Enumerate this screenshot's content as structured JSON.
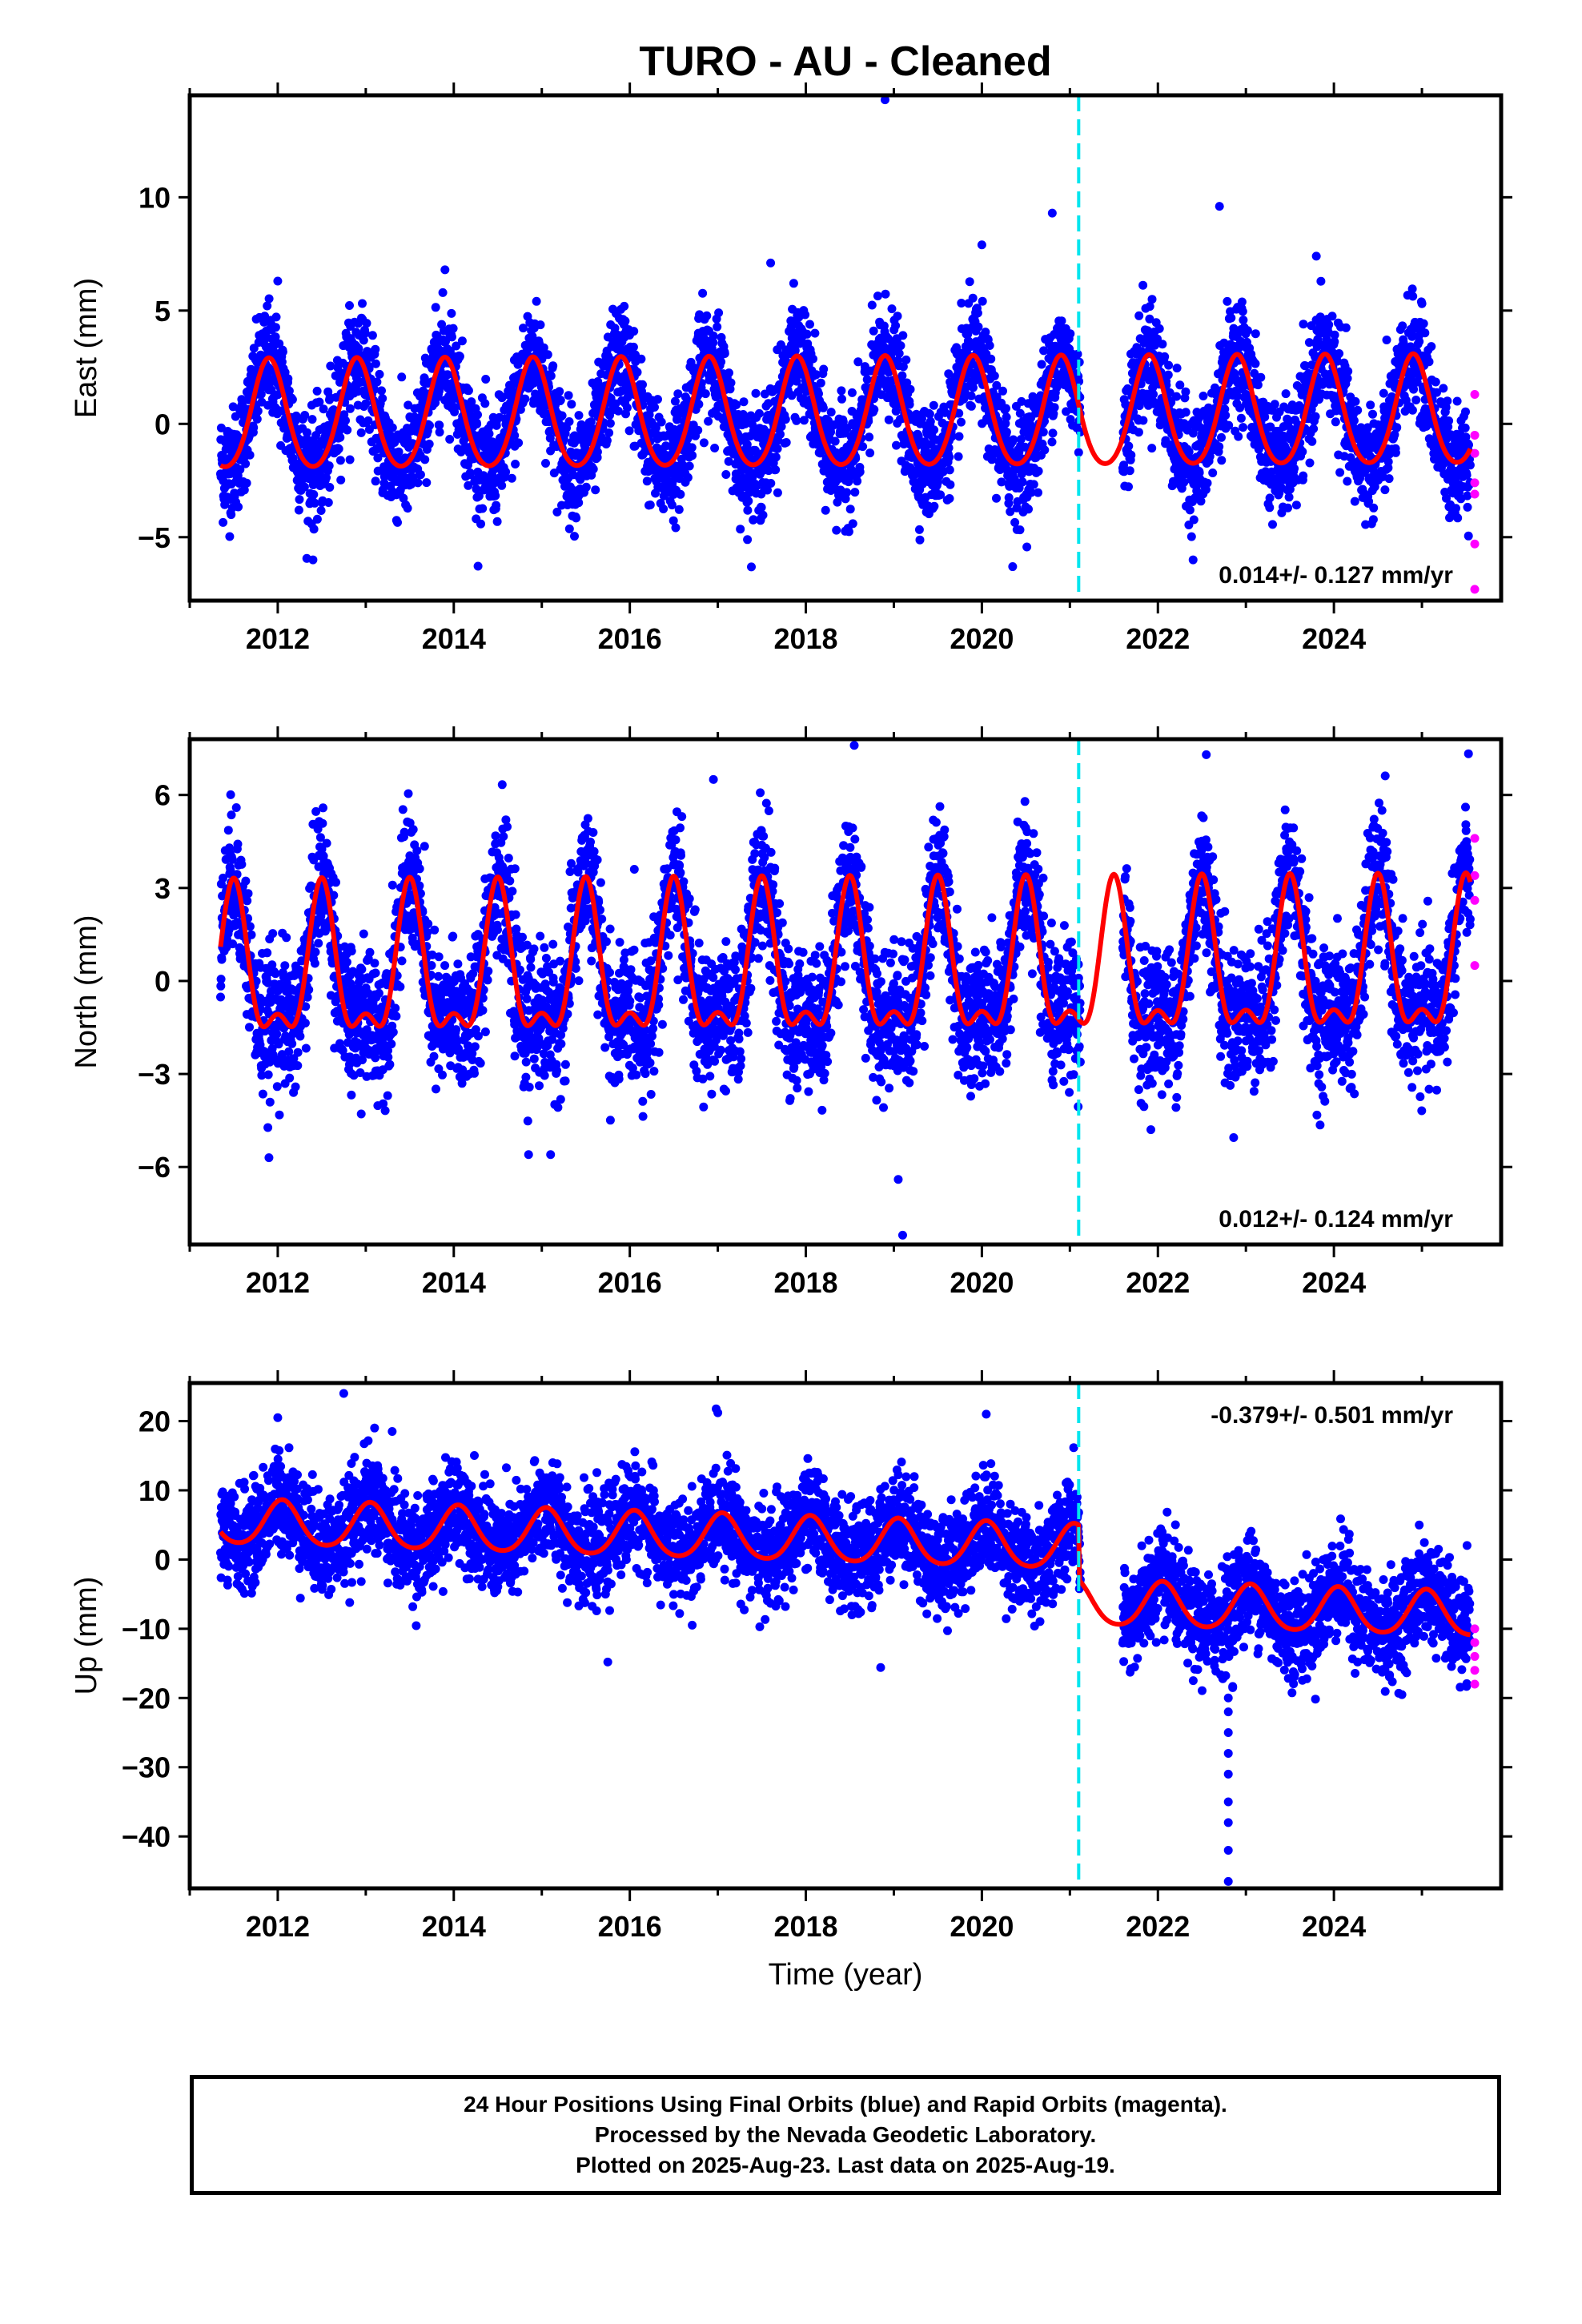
{
  "title": "TURO  - AU - Cleaned",
  "x_axis_label": "Time (year)",
  "footer": {
    "line1": "24 Hour Positions Using Final Orbits (blue) and Rapid Orbits (magenta).",
    "line2": "Processed by the Nevada Geodetic Laboratory.",
    "line3": "Plotted on 2025-Aug-23. Last data on 2025-Aug-19."
  },
  "colors": {
    "final_orbits": "#0000ff",
    "rapid_orbits": "#ff00ff",
    "model_fit": "#ff0000",
    "equipment_change": "#00e5ee"
  },
  "chart_data": [
    {
      "type": "scatter",
      "component": "east",
      "ylabel": "East (mm)",
      "xlim": [
        2011.0,
        2025.9
      ],
      "ylim": [
        -7.8,
        14.5
      ],
      "yticks": [
        -5,
        0,
        5,
        10
      ],
      "xticks": [
        2012,
        2014,
        2016,
        2018,
        2020,
        2022,
        2024
      ],
      "rate": "0.014+/- 0.127 mm/yr",
      "rate_position": "bottom-right",
      "step_epoch": 2021.1,
      "data_start": 2011.35,
      "data_end": 2025.55,
      "gap": [
        2021.12,
        2021.6
      ],
      "fit": {
        "offset": 0.3,
        "trend": 0.014,
        "annual_amp": 2.4,
        "annual_peak": 2011.9,
        "semiannual_amp": 0.3,
        "semiannual_peak": 2011.9
      },
      "scatter_sigma": 1.2,
      "outliers": [
        [
          2018.9,
          14.3
        ],
        [
          2020.8,
          9.3
        ],
        [
          2022.7,
          9.6
        ],
        [
          2023.8,
          7.4
        ],
        [
          2020.35,
          -6.3
        ],
        [
          2022.4,
          -6.0
        ],
        [
          2012.4,
          -6.0
        ],
        [
          2012.0,
          6.3
        ],
        [
          2013.9,
          6.8
        ],
        [
          2017.6,
          7.1
        ],
        [
          2020.0,
          7.9
        ]
      ],
      "rapid_points": [
        [
          2025.6,
          1.3
        ],
        [
          2025.6,
          -0.5
        ],
        [
          2025.6,
          -1.3
        ],
        [
          2025.6,
          -2.6
        ],
        [
          2025.6,
          -3.1
        ],
        [
          2025.6,
          -5.3
        ],
        [
          2025.6,
          -7.3
        ]
      ],
      "grid": false
    },
    {
      "type": "scatter",
      "component": "north",
      "ylabel": "North (mm)",
      "xlim": [
        2011.0,
        2025.9
      ],
      "ylim": [
        -8.5,
        7.8
      ],
      "yticks": [
        -6,
        -3,
        0,
        3,
        6
      ],
      "xticks": [
        2012,
        2014,
        2016,
        2018,
        2020,
        2022,
        2024
      ],
      "rate": "0.012+/- 0.124 mm/yr",
      "rate_position": "bottom-right",
      "step_epoch": 2021.1,
      "data_start": 2011.35,
      "data_end": 2025.55,
      "gap": [
        2021.12,
        2021.6
      ],
      "fit": {
        "offset": 0.2,
        "trend": 0.012,
        "annual_amp": 2.2,
        "annual_peak": 2011.5,
        "semiannual_amp": 1.0,
        "semiannual_peak": 2011.5
      },
      "scatter_sigma": 1.1,
      "outliers": [
        [
          2018.55,
          7.6
        ],
        [
          2016.95,
          6.5
        ],
        [
          2022.55,
          7.3
        ],
        [
          2019.05,
          -6.4
        ],
        [
          2019.1,
          -8.2
        ],
        [
          2014.85,
          -5.6
        ],
        [
          2015.1,
          -5.6
        ],
        [
          2011.9,
          -5.7
        ]
      ],
      "rapid_points": [
        [
          2025.6,
          4.6
        ],
        [
          2025.6,
          3.4
        ],
        [
          2025.6,
          2.6
        ],
        [
          2025.6,
          0.5
        ]
      ],
      "grid": false
    },
    {
      "type": "scatter",
      "component": "up",
      "ylabel": "Up (mm)",
      "xlim": [
        2011.0,
        2025.9
      ],
      "ylim": [
        -47.5,
        25.5
      ],
      "yticks": [
        -40,
        -30,
        -20,
        -10,
        0,
        10,
        20
      ],
      "xticks": [
        2012,
        2014,
        2016,
        2018,
        2020,
        2022,
        2024
      ],
      "xlabel": "Time (year)",
      "rate": "-0.379+/- 0.501 mm/yr",
      "rate_position": "top-right",
      "step_epoch": 2021.1,
      "data_start": 2011.35,
      "data_end": 2025.55,
      "gap": [
        2021.12,
        2021.6
      ],
      "fit": {
        "offset": 2.8,
        "trend": -0.379,
        "annual_amp": 3.2,
        "annual_peak": 2012.05,
        "semiannual_amp": 0.4,
        "semiannual_peak": 2012.05
      },
      "post_step_offset": -8.0,
      "scatter_sigma": 3.6,
      "outliers": [
        [
          2012.75,
          24.0
        ],
        [
          2017.0,
          21.2
        ],
        [
          2020.05,
          21.0
        ],
        [
          2012.0,
          20.5
        ],
        [
          2013.1,
          19.0
        ],
        [
          2013.3,
          18.5
        ],
        [
          2015.75,
          -14.8
        ],
        [
          2018.85,
          -15.6
        ],
        [
          2022.8,
          -46.5
        ],
        [
          2022.8,
          -42.0
        ],
        [
          2022.8,
          -38.0
        ],
        [
          2022.8,
          -35.0
        ],
        [
          2022.8,
          -31.0
        ],
        [
          2022.8,
          -28.0
        ],
        [
          2022.8,
          -25.0
        ],
        [
          2022.8,
          -22.0
        ],
        [
          2022.8,
          -20.0
        ],
        [
          2022.75,
          -17.0
        ],
        [
          2022.85,
          -18.5
        ]
      ],
      "rapid_points": [
        [
          2025.6,
          -10.0
        ],
        [
          2025.6,
          -12.0
        ],
        [
          2025.6,
          -14.0
        ],
        [
          2025.6,
          -16.0
        ],
        [
          2025.6,
          -18.0
        ]
      ],
      "grid": false
    }
  ]
}
